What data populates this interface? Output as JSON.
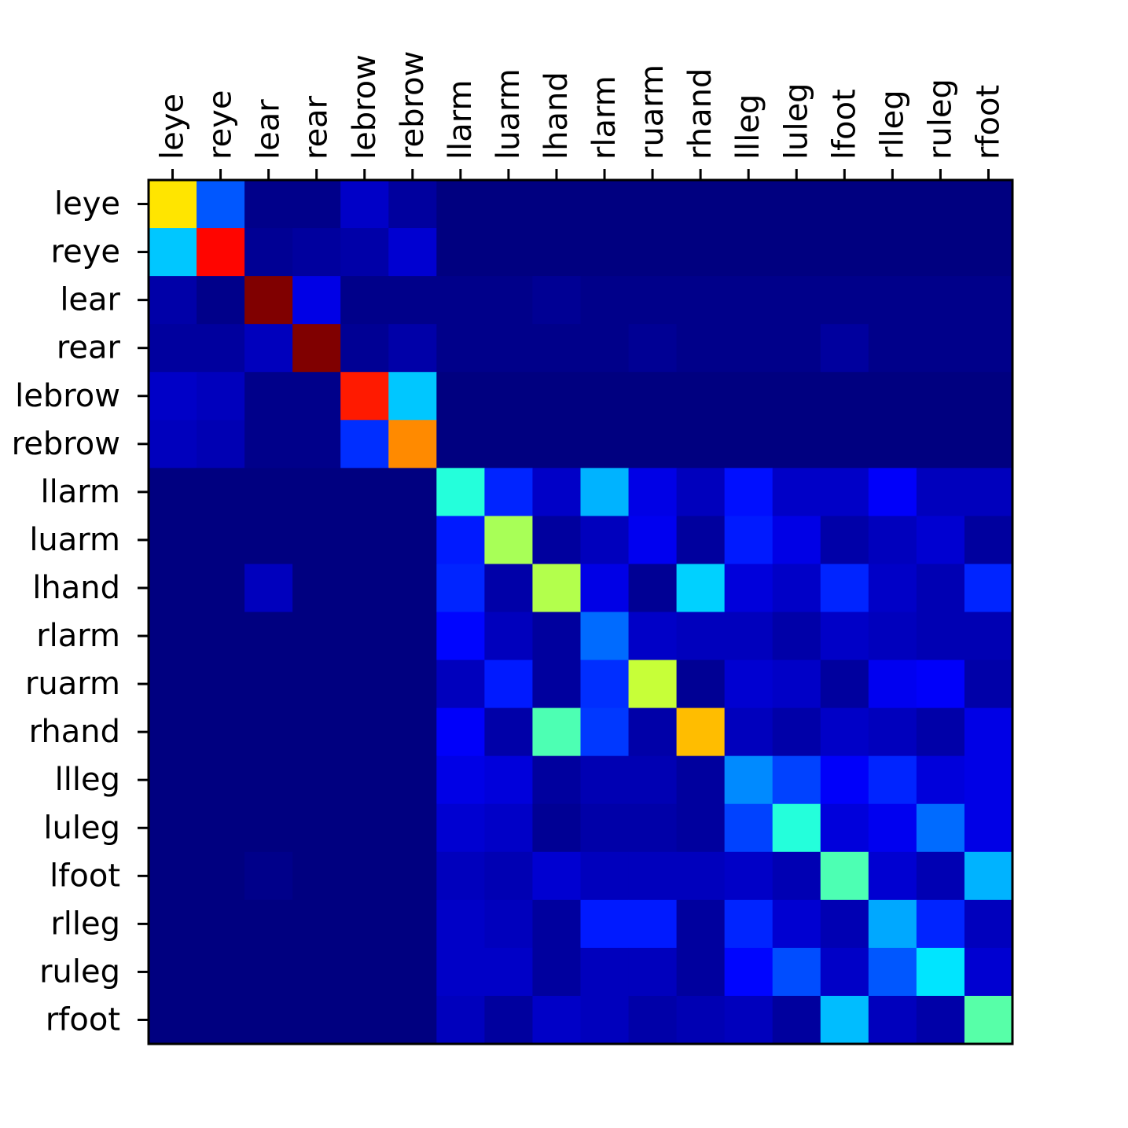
{
  "chart_data": {
    "type": "heatmap",
    "title": "",
    "xlabel": "",
    "ylabel": "",
    "colormap": "jet",
    "value_range": [
      0,
      1
    ],
    "grid": false,
    "colorbar": false,
    "x_tick_position": "top",
    "x_tick_rotation": 90,
    "x_categories": [
      "leye",
      "reye",
      "lear",
      "rear",
      "lebrow",
      "rebrow",
      "llarm",
      "luarm",
      "lhand",
      "rlarm",
      "ruarm",
      "rhand",
      "llleg",
      "luleg",
      "lfoot",
      "rlleg",
      "ruleg",
      "rfoot"
    ],
    "y_categories": [
      "leye",
      "reye",
      "lear",
      "rear",
      "lebrow",
      "rebrow",
      "llarm",
      "luarm",
      "lhand",
      "rlarm",
      "ruarm",
      "rhand",
      "llleg",
      "luleg",
      "lfoot",
      "rlleg",
      "ruleg",
      "rfoot"
    ],
    "values": [
      [
        0.65,
        0.21,
        0.01,
        0.01,
        0.07,
        0.03,
        0,
        0,
        0,
        0,
        0,
        0,
        0,
        0,
        0,
        0,
        0,
        0
      ],
      [
        0.32,
        0.87,
        0.02,
        0.03,
        0.04,
        0.08,
        0,
        0,
        0,
        0,
        0,
        0,
        0,
        0,
        0,
        0,
        0,
        0
      ],
      [
        0.04,
        0.01,
        1.0,
        0.1,
        0.01,
        0.01,
        0.01,
        0.01,
        0.02,
        0.01,
        0.01,
        0.01,
        0.01,
        0.01,
        0.01,
        0.01,
        0.01,
        0.01
      ],
      [
        0.03,
        0.03,
        0.06,
        1.0,
        0.02,
        0.04,
        0.01,
        0.01,
        0.01,
        0.01,
        0.02,
        0.01,
        0.01,
        0.01,
        0.03,
        0.01,
        0.01,
        0.01
      ],
      [
        0.07,
        0.06,
        0.01,
        0.01,
        0.85,
        0.32,
        0,
        0,
        0,
        0,
        0,
        0,
        0,
        0,
        0,
        0,
        0,
        0
      ],
      [
        0.06,
        0.05,
        0.01,
        0.01,
        0.17,
        0.74,
        0,
        0,
        0,
        0,
        0,
        0,
        0,
        0,
        0,
        0,
        0,
        0
      ],
      [
        0,
        0,
        0,
        0,
        0,
        0,
        0.41,
        0.16,
        0.07,
        0.3,
        0.1,
        0.06,
        0.14,
        0.07,
        0.07,
        0.12,
        0.06,
        0.06
      ],
      [
        0,
        0,
        0,
        0,
        0,
        0,
        0.15,
        0.54,
        0.03,
        0.06,
        0.11,
        0.03,
        0.15,
        0.1,
        0.04,
        0.06,
        0.08,
        0.03
      ],
      [
        0,
        0,
        0.06,
        0,
        0,
        0,
        0.16,
        0.04,
        0.55,
        0.1,
        0.02,
        0.33,
        0.09,
        0.07,
        0.16,
        0.07,
        0.05,
        0.16
      ],
      [
        0,
        0,
        0,
        0,
        0,
        0,
        0.13,
        0.06,
        0.03,
        0.23,
        0.07,
        0.06,
        0.06,
        0.04,
        0.07,
        0.06,
        0.05,
        0.05
      ],
      [
        0,
        0,
        0,
        0,
        0,
        0,
        0.06,
        0.15,
        0.03,
        0.17,
        0.57,
        0.02,
        0.08,
        0.07,
        0.03,
        0.11,
        0.12,
        0.04
      ],
      [
        0,
        0,
        0,
        0,
        0,
        0,
        0.12,
        0.04,
        0.45,
        0.18,
        0.04,
        0.69,
        0.06,
        0.04,
        0.07,
        0.06,
        0.04,
        0.1
      ],
      [
        0,
        0,
        0,
        0,
        0,
        0,
        0.1,
        0.09,
        0.03,
        0.05,
        0.05,
        0.03,
        0.26,
        0.19,
        0.12,
        0.16,
        0.09,
        0.1
      ],
      [
        0,
        0,
        0,
        0,
        0,
        0,
        0.08,
        0.07,
        0.02,
        0.04,
        0.04,
        0.03,
        0.19,
        0.41,
        0.09,
        0.11,
        0.23,
        0.1
      ],
      [
        0,
        0,
        0.01,
        0,
        0,
        0,
        0.06,
        0.05,
        0.08,
        0.06,
        0.06,
        0.06,
        0.07,
        0.05,
        0.45,
        0.08,
        0.05,
        0.3
      ],
      [
        0,
        0,
        0,
        0,
        0,
        0,
        0.07,
        0.06,
        0.03,
        0.15,
        0.15,
        0.03,
        0.16,
        0.08,
        0.05,
        0.29,
        0.16,
        0.06
      ],
      [
        0,
        0,
        0,
        0,
        0,
        0,
        0.07,
        0.07,
        0.03,
        0.06,
        0.06,
        0.03,
        0.13,
        0.2,
        0.07,
        0.21,
        0.35,
        0.08
      ],
      [
        0,
        0,
        0,
        0,
        0,
        0,
        0.06,
        0.03,
        0.07,
        0.06,
        0.04,
        0.05,
        0.06,
        0.03,
        0.31,
        0.06,
        0.04,
        0.46
      ]
    ]
  }
}
